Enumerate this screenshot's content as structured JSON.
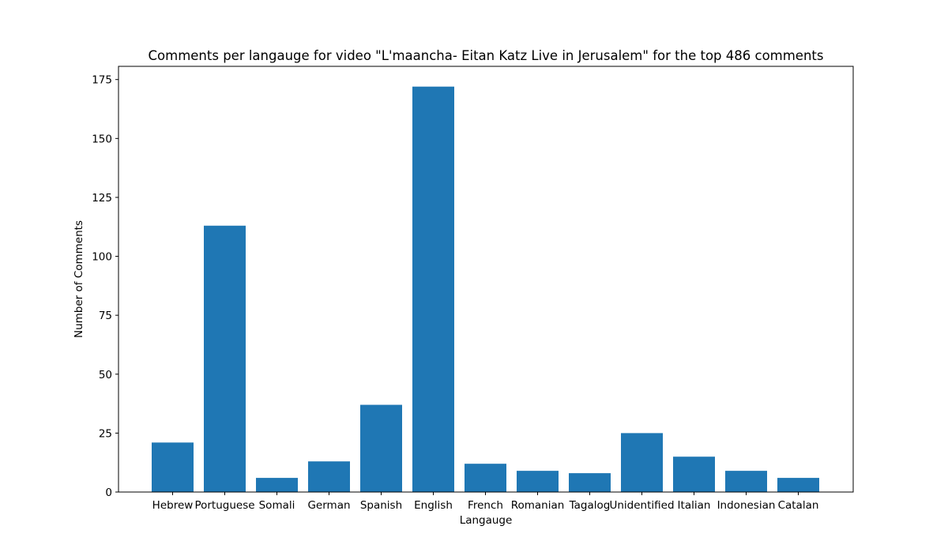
{
  "chart_data": {
    "type": "bar",
    "title": "Comments per langauge for video \"L'maancha- Eitan Katz Live in Jerusalem\" for the top 486 comments",
    "xlabel": "Langauge",
    "ylabel": "Number of Comments",
    "categories": [
      "Hebrew",
      "Portuguese",
      "Somali",
      "German",
      "Spanish",
      "English",
      "French",
      "Romanian",
      "Tagalog",
      "Unidentified",
      "Italian",
      "Indonesian",
      "Catalan"
    ],
    "values": [
      21,
      113,
      6,
      13,
      37,
      172,
      12,
      9,
      8,
      25,
      15,
      9,
      6
    ],
    "ylim": [
      0,
      180.6
    ],
    "yticks": [
      0,
      25,
      50,
      75,
      100,
      125,
      150,
      175
    ],
    "grid": false,
    "legend": "none",
    "bar_color": "#1f77b4"
  }
}
